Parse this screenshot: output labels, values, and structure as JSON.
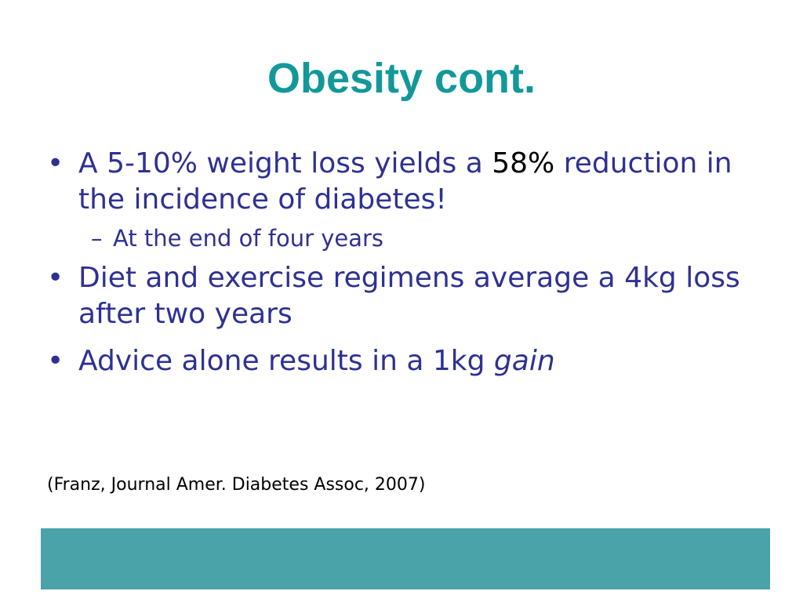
{
  "slide": {
    "title": "Obesity cont.",
    "bullet_symbol": "•",
    "sub_symbol": "–",
    "bullets": [
      {
        "text_before": "A 5-10% weight loss yields a ",
        "highlight": "58%",
        "text_after": " reduction in the incidence of diabetes!"
      },
      {
        "text": "Diet and exercise regimens average a 4kg loss after two years"
      },
      {
        "text_before": "Advice alone results in a 1kg ",
        "emphasis": "gain"
      }
    ],
    "sub_bullets": [
      "At the end of four years"
    ],
    "citation": "(Franz, Journal Amer. Diabetes Assoc, 2007)"
  },
  "colors": {
    "title": "#13989A",
    "body_text": "#2E3192",
    "highlight": "#000000",
    "footer_bar": "#4AA3A8",
    "background": "#FFFFFF"
  }
}
